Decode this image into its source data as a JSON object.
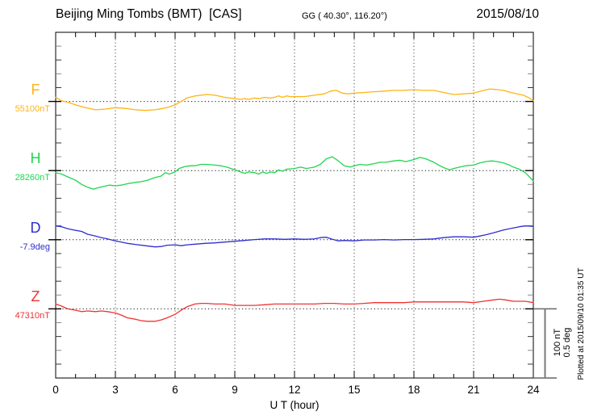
{
  "header": {
    "station_title": "Beijing Ming Tombs (BMT)  [CAS]",
    "gg_coords": "GG ( 40.30°, 116.20°)",
    "date": "2015/08/10"
  },
  "axis": {
    "x_label": "U T (hour)",
    "x_tick_labels": [
      "0",
      "3",
      "6",
      "9",
      "12",
      "15",
      "18",
      "21",
      "24"
    ],
    "x_tick_hours": [
      0,
      3,
      6,
      9,
      12,
      15,
      18,
      21,
      24
    ],
    "x_minor_step_hours": 1,
    "x_range_hours": [
      0,
      24
    ]
  },
  "scalebar": {
    "nt_label": "100 nT",
    "deg_label": "0.5 deg"
  },
  "footer": {
    "plotted_at": "Plotted at 2015/09/10 01:35 UT"
  },
  "chart_data": {
    "type": "line",
    "title": "Beijing Ming Tombs (BMT) [CAS] — geomagnetic components F, H, D, Z, 2015/08/10",
    "xlabel": "U T (hour)",
    "x_range": [
      0,
      24
    ],
    "x_major_ticks": [
      0,
      3,
      6,
      9,
      12,
      15,
      18,
      21,
      24
    ],
    "grid": {
      "vertical_dotted_every_hours": 3,
      "horizontal_dotted_at_baselines": true
    },
    "scale": {
      "baseline_gap_nT": 100,
      "baseline_gap_deg": 0.5
    },
    "legend_position": "left-margin",
    "series": [
      {
        "id": "F",
        "label": "F",
        "unit": "nT",
        "baseline": 55100,
        "baseline_label": "55100nT",
        "color": "#ffb414",
        "points": [
          [
            0,
            55106
          ],
          [
            0.3,
            55101
          ],
          [
            0.7,
            55098
          ],
          [
            1,
            55095
          ],
          [
            1.5,
            55091
          ],
          [
            2,
            55088
          ],
          [
            2.5,
            55089
          ],
          [
            3,
            55091
          ],
          [
            3.5,
            55090
          ],
          [
            4,
            55088
          ],
          [
            4.5,
            55087
          ],
          [
            5,
            55088
          ],
          [
            5.4,
            55090
          ],
          [
            5.7,
            55092
          ],
          [
            6,
            55095
          ],
          [
            6.3,
            55100
          ],
          [
            6.6,
            55105
          ],
          [
            7,
            55108
          ],
          [
            7.3,
            55109
          ],
          [
            7.6,
            55110
          ],
          [
            8,
            55109
          ],
          [
            8.5,
            55106
          ],
          [
            9,
            55104
          ],
          [
            9.3,
            55103
          ],
          [
            9.5,
            55104
          ],
          [
            9.7,
            55103
          ],
          [
            10,
            55105
          ],
          [
            10.2,
            55104
          ],
          [
            10.5,
            55106
          ],
          [
            10.8,
            55105
          ],
          [
            11,
            55106
          ],
          [
            11.2,
            55108
          ],
          [
            11.4,
            55106
          ],
          [
            11.6,
            55108
          ],
          [
            11.8,
            55107
          ],
          [
            12,
            55107
          ],
          [
            12.5,
            55107
          ],
          [
            13,
            55109
          ],
          [
            13.5,
            55111
          ],
          [
            13.8,
            55115
          ],
          [
            14.1,
            55116
          ],
          [
            14.4,
            55112
          ],
          [
            14.7,
            55111
          ],
          [
            15,
            55112
          ],
          [
            15.5,
            55113
          ],
          [
            16,
            55114
          ],
          [
            16.5,
            55115
          ],
          [
            17,
            55116
          ],
          [
            17.5,
            55116
          ],
          [
            18,
            55117
          ],
          [
            18.4,
            55116
          ],
          [
            18.7,
            55116
          ],
          [
            19,
            55116
          ],
          [
            19.5,
            55113
          ],
          [
            20,
            55110
          ],
          [
            20.5,
            55111
          ],
          [
            21,
            55112
          ],
          [
            21.5,
            55116
          ],
          [
            21.8,
            55118
          ],
          [
            22.2,
            55117
          ],
          [
            22.5,
            55116
          ],
          [
            23,
            55112
          ],
          [
            23.5,
            55109
          ],
          [
            23.8,
            55105
          ],
          [
            24,
            55101
          ]
        ]
      },
      {
        "id": "H",
        "label": "H",
        "unit": "nT",
        "baseline": 28260,
        "baseline_label": "28260nT",
        "color": "#21d551",
        "points": [
          [
            0,
            28257
          ],
          [
            0.3,
            28255
          ],
          [
            0.6,
            28251
          ],
          [
            1,
            28246
          ],
          [
            1.3,
            28240
          ],
          [
            1.6,
            28236
          ],
          [
            1.9,
            28233
          ],
          [
            2.1,
            28235
          ],
          [
            2.4,
            28237
          ],
          [
            2.7,
            28239
          ],
          [
            3,
            28238
          ],
          [
            3.3,
            28239
          ],
          [
            3.6,
            28241
          ],
          [
            4,
            28243
          ],
          [
            4.3,
            28244
          ],
          [
            4.6,
            28246
          ],
          [
            5,
            28250
          ],
          [
            5.3,
            28252
          ],
          [
            5.5,
            28257
          ],
          [
            5.7,
            28255
          ],
          [
            6,
            28258
          ],
          [
            6.2,
            28263
          ],
          [
            6.5,
            28266
          ],
          [
            6.8,
            28267
          ],
          [
            7,
            28267
          ],
          [
            7.3,
            28269
          ],
          [
            7.6,
            28269
          ],
          [
            8,
            28268
          ],
          [
            8.3,
            28267
          ],
          [
            8.6,
            28265
          ],
          [
            9,
            28261
          ],
          [
            9.3,
            28258
          ],
          [
            9.5,
            28256
          ],
          [
            9.7,
            28258
          ],
          [
            10,
            28257
          ],
          [
            10.2,
            28255
          ],
          [
            10.4,
            28258
          ],
          [
            10.6,
            28256
          ],
          [
            10.8,
            28258
          ],
          [
            11,
            28257
          ],
          [
            11.2,
            28261
          ],
          [
            11.4,
            28259
          ],
          [
            11.6,
            28262
          ],
          [
            12,
            28263
          ],
          [
            12.3,
            28265
          ],
          [
            12.6,
            28263
          ],
          [
            13,
            28265
          ],
          [
            13.3,
            28269
          ],
          [
            13.6,
            28277
          ],
          [
            13.9,
            28280
          ],
          [
            14.2,
            28274
          ],
          [
            14.5,
            28267
          ],
          [
            14.8,
            28265
          ],
          [
            15,
            28267
          ],
          [
            15.3,
            28269
          ],
          [
            15.6,
            28268
          ],
          [
            16,
            28270
          ],
          [
            16.3,
            28272
          ],
          [
            16.6,
            28272
          ],
          [
            17,
            28274
          ],
          [
            17.3,
            28275
          ],
          [
            17.6,
            28273
          ],
          [
            18,
            28276
          ],
          [
            18.3,
            28279
          ],
          [
            18.6,
            28277
          ],
          [
            19,
            28272
          ],
          [
            19.3,
            28267
          ],
          [
            19.6,
            28263
          ],
          [
            19.8,
            28261
          ],
          [
            20,
            28263
          ],
          [
            20.3,
            28265
          ],
          [
            20.6,
            28267
          ],
          [
            21,
            28268
          ],
          [
            21.3,
            28271
          ],
          [
            21.6,
            28273
          ],
          [
            21.9,
            28274
          ],
          [
            22.2,
            28273
          ],
          [
            22.5,
            28271
          ],
          [
            22.8,
            28268
          ],
          [
            23,
            28265
          ],
          [
            23.3,
            28262
          ],
          [
            23.6,
            28257
          ],
          [
            23.8,
            28251
          ],
          [
            24,
            28245
          ]
        ]
      },
      {
        "id": "D",
        "label": "D",
        "unit": "deg",
        "baseline": -7.9,
        "baseline_label": "-7.9deg",
        "color": "#2e2ecd",
        "points": [
          [
            0,
            -7.8
          ],
          [
            0.3,
            -7.806
          ],
          [
            0.6,
            -7.82
          ],
          [
            1,
            -7.832
          ],
          [
            1.3,
            -7.84
          ],
          [
            1.6,
            -7.86
          ],
          [
            2,
            -7.874
          ],
          [
            2.3,
            -7.885
          ],
          [
            2.6,
            -7.894
          ],
          [
            3,
            -7.908
          ],
          [
            3.3,
            -7.917
          ],
          [
            3.6,
            -7.926
          ],
          [
            4,
            -7.934
          ],
          [
            4.5,
            -7.943
          ],
          [
            5,
            -7.952
          ],
          [
            5.3,
            -7.949
          ],
          [
            5.6,
            -7.94
          ],
          [
            6,
            -7.937
          ],
          [
            6.3,
            -7.943
          ],
          [
            6.6,
            -7.937
          ],
          [
            7,
            -7.932
          ],
          [
            7.5,
            -7.926
          ],
          [
            8,
            -7.923
          ],
          [
            8.5,
            -7.917
          ],
          [
            9,
            -7.911
          ],
          [
            9.5,
            -7.905
          ],
          [
            10,
            -7.899
          ],
          [
            10.5,
            -7.894
          ],
          [
            11,
            -7.894
          ],
          [
            11.5,
            -7.897
          ],
          [
            12,
            -7.894
          ],
          [
            12.5,
            -7.897
          ],
          [
            13,
            -7.894
          ],
          [
            13.3,
            -7.885
          ],
          [
            13.6,
            -7.882
          ],
          [
            13.9,
            -7.897
          ],
          [
            14.2,
            -7.908
          ],
          [
            14.5,
            -7.905
          ],
          [
            15,
            -7.908
          ],
          [
            15.5,
            -7.902
          ],
          [
            16,
            -7.902
          ],
          [
            16.5,
            -7.899
          ],
          [
            17,
            -7.902
          ],
          [
            17.5,
            -7.899
          ],
          [
            18,
            -7.899
          ],
          [
            18.5,
            -7.897
          ],
          [
            19,
            -7.894
          ],
          [
            19.5,
            -7.885
          ],
          [
            20,
            -7.879
          ],
          [
            20.5,
            -7.879
          ],
          [
            21,
            -7.882
          ],
          [
            21.3,
            -7.874
          ],
          [
            21.6,
            -7.865
          ],
          [
            22,
            -7.85
          ],
          [
            22.5,
            -7.83
          ],
          [
            23,
            -7.815
          ],
          [
            23.3,
            -7.806
          ],
          [
            23.6,
            -7.8
          ],
          [
            24,
            -7.803
          ]
        ]
      },
      {
        "id": "Z",
        "label": "Z",
        "unit": "nT",
        "baseline": 47310,
        "baseline_label": "47310nT",
        "color": "#ef3333",
        "points": [
          [
            0,
            47317
          ],
          [
            0.3,
            47314
          ],
          [
            0.6,
            47310
          ],
          [
            1,
            47308
          ],
          [
            1.3,
            47306
          ],
          [
            1.6,
            47307
          ],
          [
            2,
            47306
          ],
          [
            2.3,
            47307
          ],
          [
            2.6,
            47306
          ],
          [
            3,
            47304
          ],
          [
            3.3,
            47301
          ],
          [
            3.6,
            47297
          ],
          [
            4,
            47295
          ],
          [
            4.3,
            47293
          ],
          [
            4.6,
            47292
          ],
          [
            5,
            47292
          ],
          [
            5.3,
            47294
          ],
          [
            5.6,
            47297
          ],
          [
            6,
            47302
          ],
          [
            6.3,
            47308
          ],
          [
            6.6,
            47313
          ],
          [
            7,
            47317
          ],
          [
            7.3,
            47318
          ],
          [
            7.6,
            47318
          ],
          [
            8,
            47317
          ],
          [
            8.5,
            47317
          ],
          [
            9,
            47315
          ],
          [
            9.5,
            47315
          ],
          [
            10,
            47315
          ],
          [
            10.5,
            47316
          ],
          [
            11,
            47317
          ],
          [
            11.5,
            47317
          ],
          [
            12,
            47317
          ],
          [
            12.5,
            47317
          ],
          [
            13,
            47317
          ],
          [
            13.5,
            47318
          ],
          [
            14,
            47318
          ],
          [
            14.5,
            47317
          ],
          [
            15,
            47317
          ],
          [
            15.5,
            47318
          ],
          [
            16,
            47319
          ],
          [
            16.5,
            47319
          ],
          [
            17,
            47319
          ],
          [
            17.5,
            47319
          ],
          [
            18,
            47320
          ],
          [
            18.5,
            47320
          ],
          [
            19,
            47320
          ],
          [
            19.5,
            47320
          ],
          [
            20,
            47320
          ],
          [
            20.5,
            47320
          ],
          [
            21,
            47319
          ],
          [
            21.5,
            47321
          ],
          [
            22,
            47323
          ],
          [
            22.3,
            47324
          ],
          [
            22.6,
            47323
          ],
          [
            23,
            47321
          ],
          [
            23.3,
            47321
          ],
          [
            23.6,
            47321
          ],
          [
            24,
            47319
          ]
        ]
      }
    ]
  }
}
